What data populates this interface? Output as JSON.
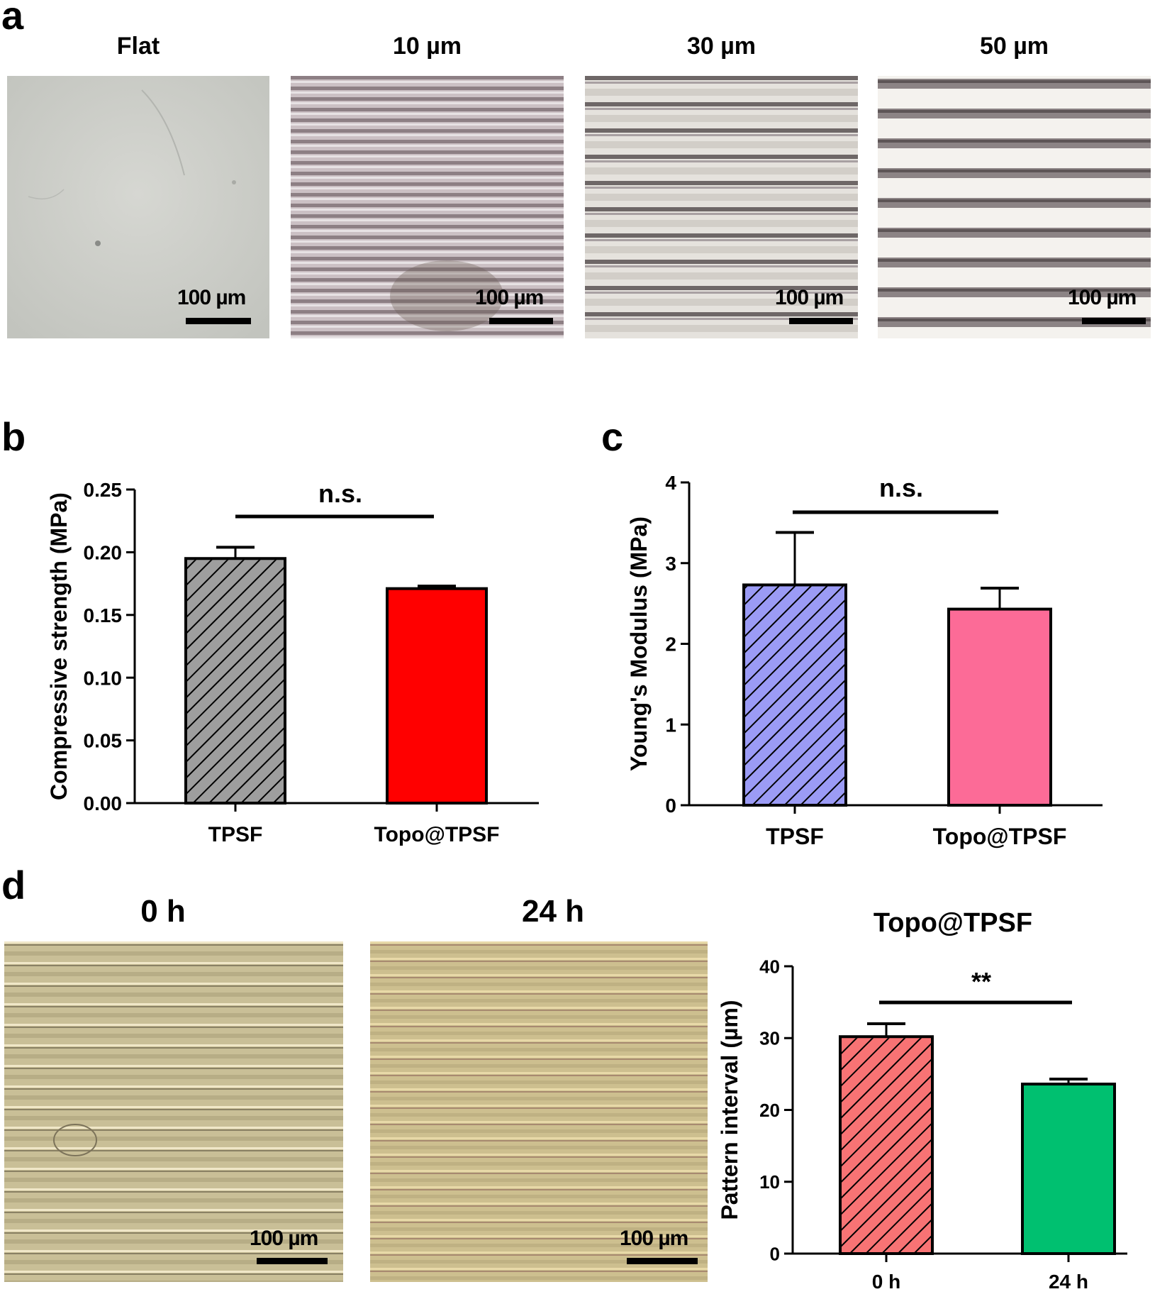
{
  "panels": {
    "a": {
      "letter": "a",
      "images": [
        {
          "title": "Flat",
          "scale_label": "100 µm",
          "texture": "flat"
        },
        {
          "title": "10 µm",
          "scale_label": "100 µm",
          "texture": "stripes-fine"
        },
        {
          "title": "30 µm",
          "scale_label": "100 µm",
          "texture": "stripes-medium"
        },
        {
          "title": "50 µm",
          "scale_label": "100 µm",
          "texture": "stripes-wide"
        }
      ]
    },
    "b": {
      "letter": "b"
    },
    "c": {
      "letter": "c"
    },
    "d": {
      "letter": "d",
      "images": [
        {
          "title": "0 h",
          "scale_label": "100 µm",
          "texture": "stripes-yellow-0h"
        },
        {
          "title": "24 h",
          "scale_label": "100 µm",
          "texture": "stripes-yellow-24h"
        }
      ]
    }
  },
  "chart_data": [
    {
      "panel": "b",
      "type": "bar",
      "categories": [
        "TPSF",
        "Topo@TPSF"
      ],
      "values": [
        0.195,
        0.171
      ],
      "errors": [
        0.009,
        0.002
      ],
      "bar_colors": [
        "#9e9e9e",
        "#ff0000"
      ],
      "hatched": [
        true,
        false
      ],
      "ylabel": "Compressive  strength (MPa)",
      "ylim": [
        0,
        0.25
      ],
      "yticks": [
        "0.00",
        "0.05",
        "0.10",
        "0.15",
        "0.20",
        "0.25"
      ],
      "significance": "n.s.",
      "grid": false
    },
    {
      "panel": "c",
      "type": "bar",
      "categories": [
        "TPSF",
        "Topo@TPSF"
      ],
      "values": [
        2.73,
        2.43
      ],
      "errors": [
        0.65,
        0.26
      ],
      "bar_colors": [
        "#9b9bf5",
        "#fc6b97"
      ],
      "hatched": [
        true,
        false
      ],
      "ylabel": "Young's Modulus (MPa)",
      "ylim": [
        0,
        4
      ],
      "yticks": [
        "0",
        "1",
        "2",
        "3",
        "4"
      ],
      "significance": "n.s.",
      "grid": false
    },
    {
      "panel": "d",
      "type": "bar",
      "title": "Topo@TPSF",
      "categories": [
        "0 h",
        "24 h"
      ],
      "values": [
        30.2,
        23.6
      ],
      "errors": [
        1.8,
        0.7
      ],
      "bar_colors": [
        "#f87374",
        "#00c070"
      ],
      "hatched": [
        true,
        false
      ],
      "ylabel": "Pattern interval (µm)",
      "ylim": [
        0,
        40
      ],
      "yticks": [
        "0",
        "10",
        "20",
        "30",
        "40"
      ],
      "significance": "**",
      "grid": false
    }
  ]
}
